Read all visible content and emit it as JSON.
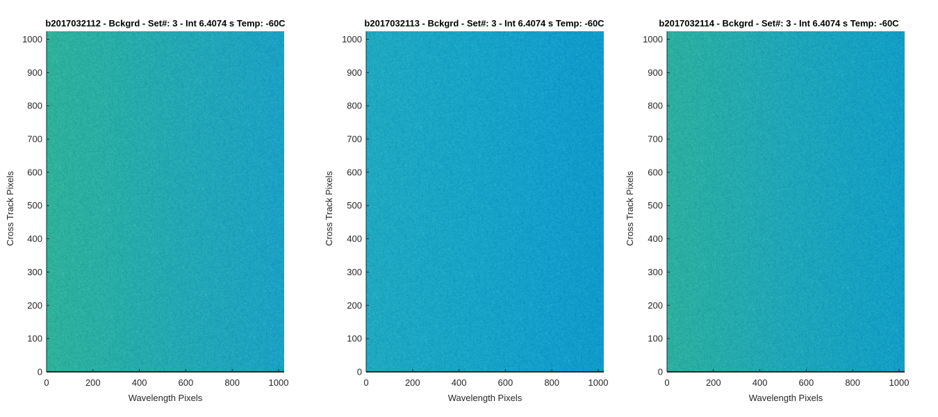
{
  "chart_data": [
    {
      "type": "heatmap",
      "title": "b2017032112 - Bckgrd - Set#: 3 - Int 6.4074 s Temp: -60C",
      "xlabel": "Wavelength Pixels",
      "ylabel": "Cross Track Pixels",
      "xlim": [
        0,
        1024
      ],
      "ylim": [
        0,
        1024
      ],
      "xticks": [
        0,
        200,
        400,
        600,
        800,
        1000
      ],
      "yticks": [
        0,
        100,
        200,
        300,
        400,
        500,
        600,
        700,
        800,
        900,
        1000
      ],
      "colors": {
        "left": "#2fb19a",
        "mid": "#24a9b1",
        "right": "#1ca1c4"
      },
      "grid": false
    },
    {
      "type": "heatmap",
      "title": "b2017032113 - Bckgrd - Set#: 3 - Int 6.4074 s Temp: -60C",
      "xlabel": "Wavelength Pixels",
      "ylabel": "Cross Track Pixels",
      "xlim": [
        0,
        1024
      ],
      "ylim": [
        0,
        1024
      ],
      "xticks": [
        0,
        200,
        400,
        600,
        800,
        1000
      ],
      "yticks": [
        0,
        100,
        200,
        300,
        400,
        500,
        600,
        700,
        800,
        900,
        1000
      ],
      "colors": {
        "left": "#20a9c0",
        "mid": "#17a3c8",
        "right": "#0f9bcb"
      },
      "grid": false
    },
    {
      "type": "heatmap",
      "title": "b2017032114 - Bckgrd - Set#: 3 - Int 6.4074 s Temp: -60C",
      "xlabel": "Wavelength Pixels",
      "ylabel": "Cross Track Pixels",
      "xlim": [
        0,
        1024
      ],
      "ylim": [
        0,
        1024
      ],
      "xticks": [
        0,
        200,
        400,
        600,
        800,
        1000
      ],
      "yticks": [
        0,
        100,
        200,
        300,
        400,
        500,
        600,
        700,
        800,
        900,
        1000
      ],
      "colors": {
        "left": "#2daf9e",
        "mid": "#1fa6b8",
        "right": "#139ec6"
      },
      "grid": false
    }
  ]
}
